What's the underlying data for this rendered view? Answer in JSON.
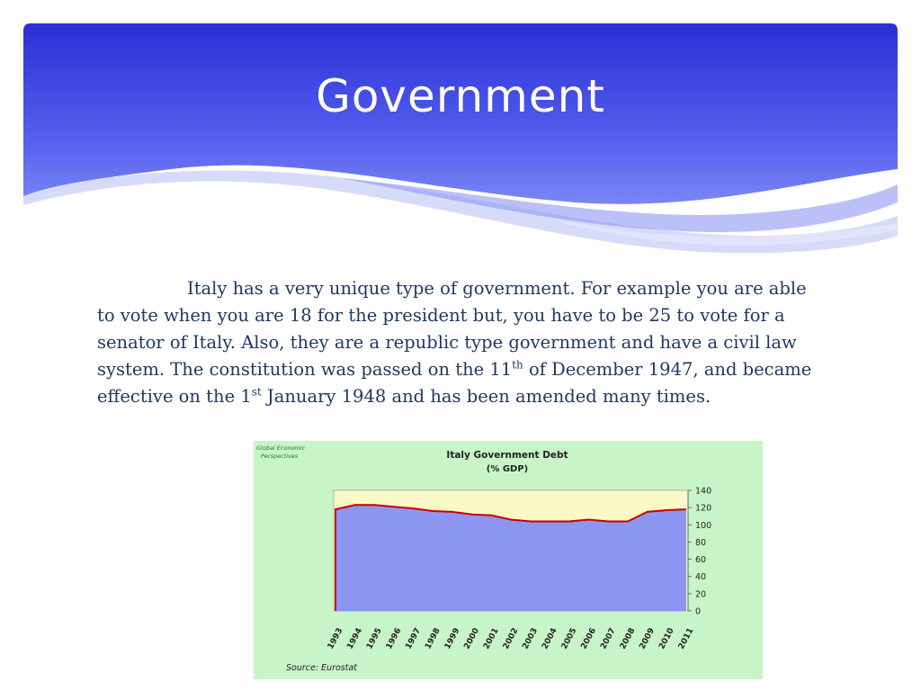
{
  "slide": {
    "title": "Government",
    "paragraph": {
      "part1": "Italy has a very unique type of government. For example you are able to vote when you are 18 for the president but, you have to be 25 to vote for a senator of Italy. Also, they are a republic type government and have a civil law system.  The constitution was passed on the 11",
      "sup1": "th",
      "part2": " of December 1947, and became effective  on the 1",
      "sup2": "st",
      "part3": " January 1948 and has been amended many times."
    },
    "colors": {
      "banner_top": "#2b2fd6",
      "banner_bottom": "#6f7df5",
      "body_text": "#1f3864"
    }
  },
  "chart_data": {
    "type": "area",
    "title": "Italy Government Debt",
    "subtitle": "(% GDP)",
    "brand": "Global Economic Perspectives",
    "source": "Source: Eurostat",
    "x": [
      "1993",
      "1994",
      "1995",
      "1996",
      "1997",
      "1998",
      "1999",
      "2000",
      "2001",
      "2002",
      "2003",
      "2004",
      "2005",
      "2006",
      "2007",
      "2008",
      "2009",
      "2010",
      "2011"
    ],
    "values": [
      118,
      123,
      123,
      121,
      119,
      116,
      115,
      112,
      111,
      106,
      104,
      104,
      104,
      106,
      104,
      104,
      115,
      117,
      118
    ],
    "yticks": [
      0,
      20,
      40,
      60,
      80,
      100,
      120,
      140
    ],
    "ylim": [
      0,
      140
    ],
    "grid": false,
    "colors": {
      "background": "#c8f5c8",
      "plot_bg": "#fafac8",
      "area_fill": "#8c96f0",
      "line": "#cc0000"
    }
  }
}
